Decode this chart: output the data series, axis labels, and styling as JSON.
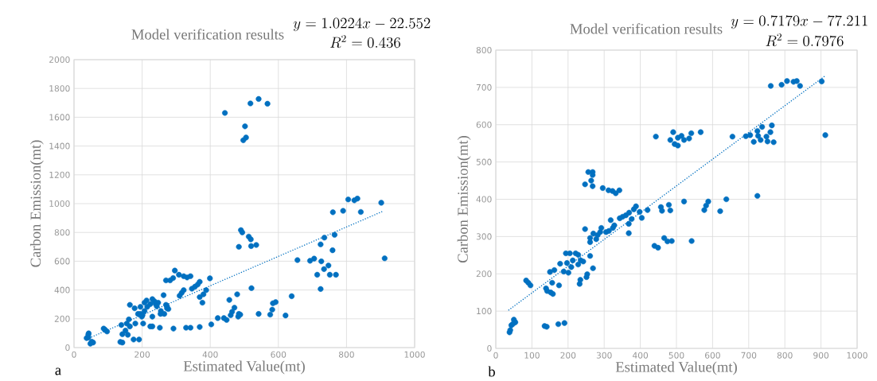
{
  "chart_data": [
    {
      "type": "scatter",
      "title": "Model verification results",
      "xlabel": "Estimated Value(mt)",
      "ylabel": "Carbon Emission(mt)",
      "xlim": [
        0,
        1000
      ],
      "ylim": [
        0,
        2000
      ],
      "xticks": [
        0,
        200,
        400,
        600,
        800,
        1000
      ],
      "yticks": [
        0,
        200,
        400,
        600,
        800,
        1000,
        1200,
        1400,
        1600,
        1800,
        2000
      ],
      "grid": true,
      "marker": "circle",
      "annotations": [
        "y = 1.0224x - 22.552",
        "R^{2} = 0.436",
        "a"
      ],
      "series": [
        {
          "type": "scatter",
          "color": "#0070c0",
          "x": [
            42,
            42,
            37,
            43,
            48,
            56,
            52,
            87,
            97,
            91,
            139,
            136,
            142,
            142,
            151,
            158,
            155,
            161,
            164,
            164,
            175,
            191,
            180,
            178,
            188,
            195,
            199,
            203,
            207,
            213,
            224,
            230,
            230,
            230,
            240,
            247,
            252,
            254,
            263,
            265,
            270,
            273,
            270,
            282,
            291,
            296,
            292,
            308,
            310,
            316,
            322,
            322,
            332,
            329,
            342,
            342,
            346,
            355,
            363,
            369,
            369,
            369,
            377,
            380,
            388,
            399,
            403,
            422,
            440,
            448,
            456,
            460,
            464,
            471,
            479,
            482,
            488,
            484,
            484,
            490,
            494,
            513,
            519,
            520,
            535,
            521,
            542,
            576,
            582,
            584,
            592,
            621,
            639,
            656,
            693,
            705,
            714,
            724,
            726,
            724,
            734,
            735,
            747,
            751,
            759,
            760,
            765,
            769,
            790,
            805,
            823,
            832,
            842,
            902,
            912,
            443,
            502,
            505,
            497,
            518,
            542,
            568,
            195,
            201,
            207,
            215,
            224,
            236,
            243,
            255,
            273,
            277
          ],
          "values": [
            89,
            70,
            66,
            99,
            27,
            35,
            41,
            132,
            112,
            124,
            157,
            39,
            35,
            93,
            118,
            89,
            167,
            196,
            147,
            297,
            56,
            56,
            167,
            273,
            234,
            283,
            215,
            167,
            312,
            327,
            147,
            147,
            215,
            337,
            302,
            312,
            138,
            234,
            364,
            234,
            297,
            273,
            467,
            467,
            483,
            535,
            132,
            506,
            360,
            380,
            399,
            496,
            487,
            138,
            138,
            496,
            409,
            423,
            438,
            457,
            143,
            351,
            312,
            370,
            399,
            481,
            161,
            205,
            205,
            192,
            331,
            225,
            248,
            277,
            370,
            215,
            229,
            234,
            700,
            816,
            800,
            771,
            752,
            705,
            713,
            413,
            234,
            229,
            264,
            308,
            316,
            223,
            357,
            608,
            603,
            618,
            506,
            717,
            599,
            407,
            545,
            764,
            570,
            506,
            676,
            940,
            783,
            506,
            950,
            1029,
            1023,
            1035,
            942,
            1006,
            620,
            1630,
            1537,
            1459,
            1440,
            1696,
            1727,
            1694,
            234,
            225,
            254,
            283,
            302,
            322,
            287,
            254,
            287,
            268
          ]
        },
        {
          "type": "line",
          "color": "#0070c0",
          "line_style": "dotted",
          "marker": "none",
          "x": [
            52,
            908
          ],
          "values": [
            74,
            948
          ]
        }
      ]
    },
    {
      "type": "scatter",
      "title": "Model verification results",
      "xlabel": "Estimated Value(mt)",
      "ylabel": "Carbon Emission(mt)",
      "xlim": [
        0,
        1000
      ],
      "ylim": [
        0,
        800
      ],
      "xticks": [
        0,
        100,
        200,
        300,
        400,
        500,
        600,
        700,
        800,
        900,
        1000
      ],
      "yticks": [
        0,
        100,
        200,
        300,
        400,
        500,
        600,
        700,
        800
      ],
      "grid": true,
      "marker": "circle",
      "annotations": [
        "y = 0.7179x - 77.211",
        "R^{2} = 0.7976",
        "b"
      ],
      "series": [
        {
          "type": "scatter",
          "color": "#0070c0",
          "x": [
            38,
            40,
            43,
            50,
            54,
            48,
            84,
            90,
            96,
            135,
            141,
            173,
            190,
            139,
            142,
            152,
            158,
            156,
            150,
            162,
            175,
            178,
            188,
            194,
            205,
            197,
            201,
            209,
            213,
            221,
            228,
            228,
            232,
            234,
            235,
            242,
            251,
            253,
            247,
            261,
            261,
            269,
            261,
            270,
            278,
            282,
            289,
            292,
            305,
            313,
            318,
            324,
            328,
            343,
            351,
            360,
            369,
            368,
            368,
            376,
            382,
            388,
            398,
            404,
            420,
            256,
            268,
            268,
            264,
            268,
            247,
            296,
            312,
            323,
            332,
            342,
            443,
            483,
            491,
            495,
            504,
            504,
            514,
            521,
            535,
            541,
            567,
            439,
            449,
            457,
            460,
            466,
            475,
            479,
            483,
            487,
            521,
            542,
            577,
            582,
            588,
            621,
            638,
            655,
            692,
            704,
            714,
            724,
            726,
            733,
            737,
            749,
            752,
            760,
            764,
            769,
            724,
            761,
            791,
            806,
            824,
            833,
            842,
            902,
            912
          ],
          "values": [
            43,
            49,
            62,
            77,
            70,
            66,
            182,
            176,
            169,
            60,
            58,
            65,
            68,
            161,
            154,
            150,
            146,
            176,
            205,
            210,
            169,
            227,
            206,
            255,
            255,
            229,
            203,
            218,
            236,
            255,
            251,
            225,
            173,
            184,
            236,
            233,
            191,
            199,
            320,
            248,
            285,
            215,
            296,
            308,
            293,
            304,
            312,
            323,
            312,
            315,
            344,
            323,
            330,
            349,
            353,
            357,
            364,
            334,
            309,
            347,
            373,
            381,
            366,
            350,
            371,
            473,
            473,
            465,
            450,
            435,
            440,
            430,
            424,
            422,
            416,
            424,
            568,
            559,
            580,
            548,
            544,
            565,
            570,
            559,
            563,
            577,
            580,
            275,
            270,
            379,
            369,
            296,
            287,
            385,
            370,
            288,
            394,
            288,
            371,
            383,
            394,
            368,
            400,
            568,
            569,
            572,
            554,
            583,
            570,
            559,
            594,
            568,
            555,
            580,
            598,
            553,
            409,
            704,
            707,
            717,
            715,
            717,
            704,
            716,
            572
          ]
        },
        {
          "type": "line",
          "color": "#0070c0",
          "line_style": "dotted",
          "marker": "none",
          "x": [
            36,
            913
          ],
          "values": [
            103,
            732
          ]
        }
      ]
    }
  ]
}
